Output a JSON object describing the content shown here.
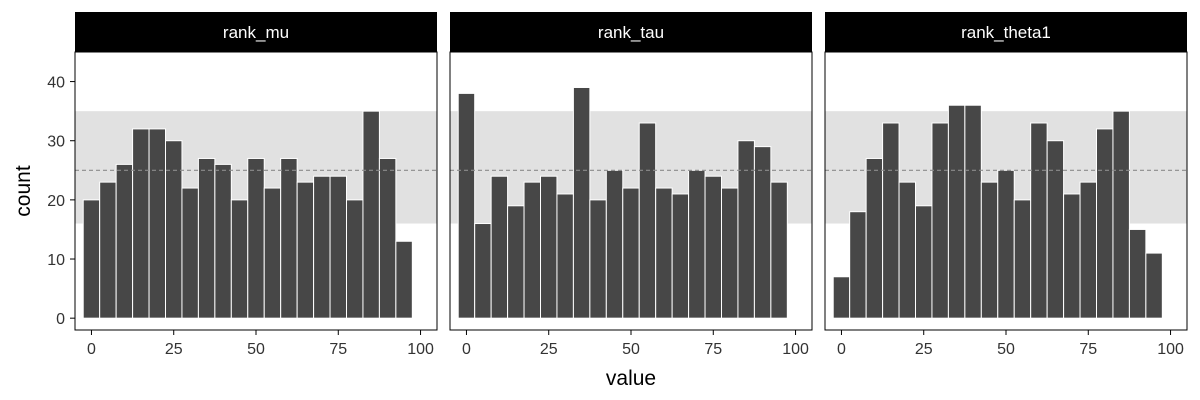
{
  "chart_data": {
    "type": "bar",
    "xlabel": "value",
    "ylabel": "count",
    "xlim": [
      -5,
      105
    ],
    "ylim": [
      -2,
      45
    ],
    "xticks": [
      0,
      25,
      50,
      75,
      100
    ],
    "yticks": [
      0,
      10,
      20,
      30,
      40
    ],
    "bin_width": 5,
    "band": [
      16,
      35
    ],
    "reference_line": 25,
    "colors": {
      "bar": "#474747",
      "band": "#e1e1e1",
      "strip": "#000000",
      "strip_text": "#ffffff",
      "reference_line": "#8c8c8c"
    },
    "panels": [
      {
        "title": "rank_mu",
        "x": [
          0,
          5,
          10,
          15,
          20,
          25,
          30,
          35,
          40,
          45,
          50,
          55,
          60,
          65,
          70,
          75,
          80,
          85,
          90,
          95
        ],
        "values": [
          20,
          23,
          26,
          32,
          32,
          30,
          22,
          27,
          26,
          20,
          27,
          22,
          27,
          23,
          24,
          24,
          20,
          35,
          27,
          13
        ]
      },
      {
        "title": "rank_tau",
        "x": [
          0,
          5,
          10,
          15,
          20,
          25,
          30,
          35,
          40,
          45,
          50,
          55,
          60,
          65,
          70,
          75,
          80,
          85,
          90,
          95
        ],
        "values": [
          38,
          16,
          24,
          19,
          23,
          24,
          21,
          39,
          20,
          25,
          22,
          33,
          22,
          21,
          25,
          24,
          22,
          30,
          29,
          23
        ]
      },
      {
        "title": "rank_theta1",
        "x": [
          0,
          5,
          10,
          15,
          20,
          25,
          30,
          35,
          40,
          45,
          50,
          55,
          60,
          65,
          70,
          75,
          80,
          85,
          90,
          95
        ],
        "values": [
          7,
          18,
          27,
          33,
          23,
          19,
          33,
          36,
          36,
          23,
          25,
          20,
          33,
          30,
          21,
          23,
          32,
          35,
          15,
          11
        ]
      }
    ]
  }
}
